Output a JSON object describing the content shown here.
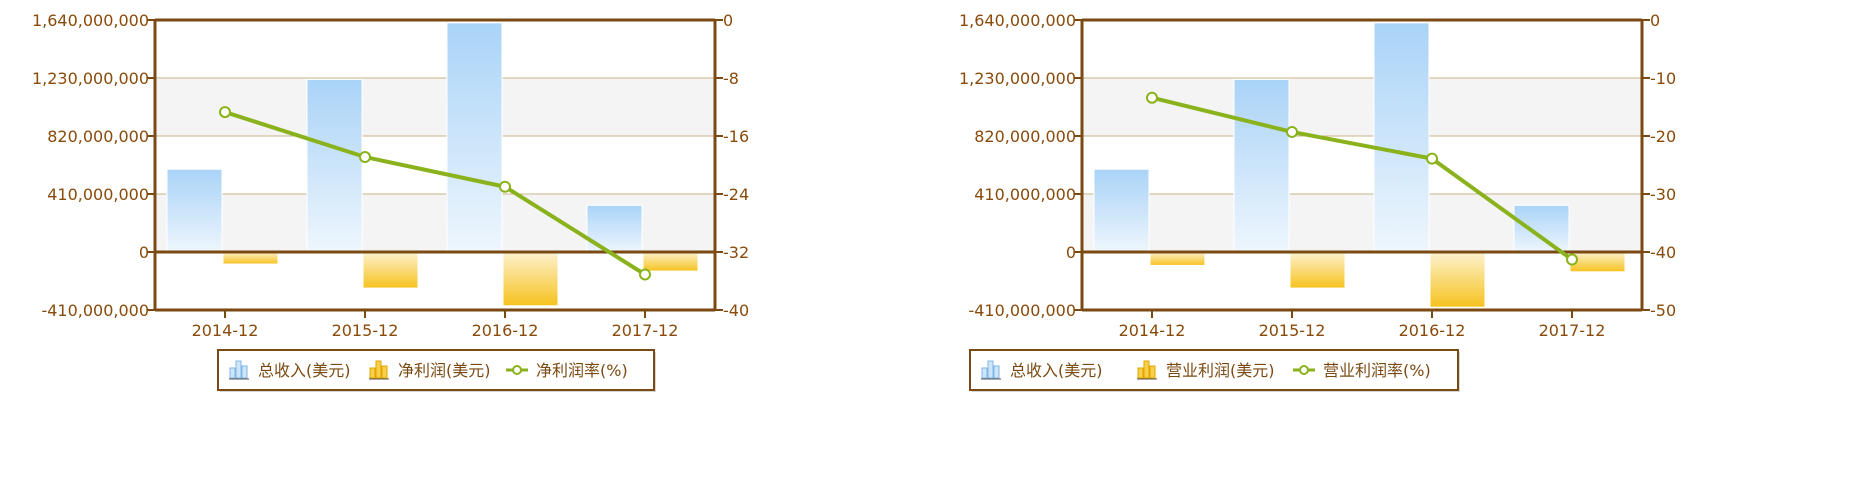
{
  "colors": {
    "axis": "#7a4a12",
    "tick_text": "#8a4a0a",
    "grid": "#c9b48a",
    "band": "#f4f4f4",
    "bar_blue_top": "#a9d3f7",
    "bar_blue_bottom": "#eef6fd",
    "bar_orange_top": "#f6c21e",
    "bar_orange_bottom": "#fdf2cf",
    "line": "#8ab21c",
    "marker_fill": "#ffffff",
    "legend_border": "#7a4a12",
    "legend_text": "#7a4a12"
  },
  "chart_data": [
    {
      "type": "bar",
      "categories": [
        "2014-12",
        "2015-12",
        "2016-12",
        "2017-12"
      ],
      "series": [
        {
          "name": "总收入(美元)",
          "kind": "bar",
          "axis": "left",
          "color": "blue",
          "values": [
            585000000,
            1220000000,
            1620000000,
            330000000
          ]
        },
        {
          "name": "净利润(美元)",
          "kind": "bar",
          "axis": "left",
          "color": "orange",
          "values": [
            -85000000,
            -255000000,
            -380000000,
            -135000000
          ]
        },
        {
          "name": "净利润率(%)",
          "kind": "line",
          "axis": "right",
          "values": [
            -12.7,
            -18.9,
            -23.0,
            -35.1
          ]
        }
      ],
      "y_left": {
        "range": [
          -410000000,
          1640000000
        ],
        "ticks": [
          "1,640,000,000",
          "1,230,000,000",
          "820,000,000",
          "410,000,000",
          "0",
          "-410,000,000"
        ]
      },
      "y_right": {
        "range": [
          -40,
          0
        ],
        "ticks": [
          "0",
          "-8",
          "-16",
          "-24",
          "-32",
          "-40"
        ]
      },
      "legend": "bottom",
      "grid": true
    },
    {
      "type": "bar",
      "categories": [
        "2014-12",
        "2015-12",
        "2016-12",
        "2017-12"
      ],
      "series": [
        {
          "name": "总收入(美元)",
          "kind": "bar",
          "axis": "left",
          "color": "blue",
          "values": [
            585000000,
            1220000000,
            1620000000,
            330000000
          ]
        },
        {
          "name": "营业利润(美元)",
          "kind": "bar",
          "axis": "left",
          "color": "orange",
          "values": [
            -95000000,
            -255000000,
            -390000000,
            -140000000
          ]
        },
        {
          "name": "营业利润率(%)",
          "kind": "line",
          "axis": "right",
          "values": [
            -13.4,
            -19.3,
            -23.9,
            -41.3
          ]
        }
      ],
      "y_left": {
        "range": [
          -410000000,
          1640000000
        ],
        "ticks": [
          "1,640,000,000",
          "1,230,000,000",
          "820,000,000",
          "410,000,000",
          "0",
          "-410,000,000"
        ]
      },
      "y_right": {
        "range": [
          -50,
          0
        ],
        "ticks": [
          "0",
          "-10",
          "-20",
          "-30",
          "-40",
          "-50"
        ]
      },
      "legend": "bottom",
      "grid": true
    }
  ]
}
